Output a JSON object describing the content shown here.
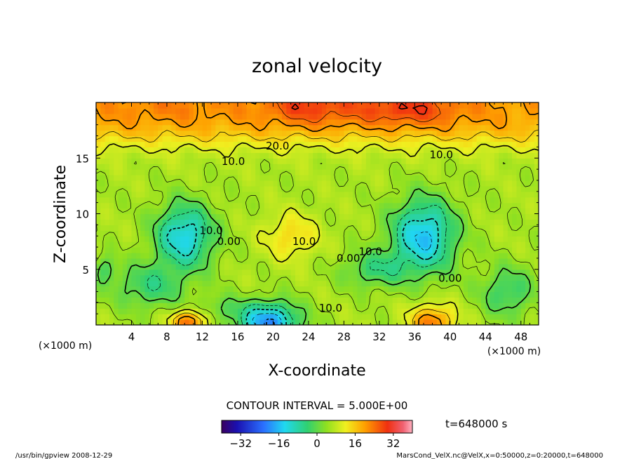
{
  "chart_data": {
    "type": "heatmap",
    "title": "zonal velocity",
    "xlabel": "X-coordinate",
    "ylabel": "Z-coordinate",
    "x_unit": "(×1000 m)",
    "y_unit": "(×1000 m)",
    "xlim": [
      0,
      50
    ],
    "ylim": [
      0,
      20
    ],
    "x_ticks": [
      4,
      8,
      12,
      16,
      20,
      24,
      28,
      32,
      36,
      40,
      44,
      48
    ],
    "y_ticks": [
      5,
      10,
      15
    ],
    "contour_interval_text": "CONTOUR INTERVAL = 5.000E+00",
    "time_label": "t=648000 s",
    "contour_labels": [
      {
        "text": "20.0",
        "x": 20.5,
        "z": 16.1
      },
      {
        "text": "10.0",
        "x": 15.5,
        "z": 14.7
      },
      {
        "text": "10.0",
        "x": 39.0,
        "z": 15.3
      },
      {
        "text": "10.0",
        "x": 13.0,
        "z": 8.5
      },
      {
        "text": "0.00",
        "x": 15.0,
        "z": 7.5
      },
      {
        "text": "10.0",
        "x": 23.5,
        "z": 7.5
      },
      {
        "text": "0.00",
        "x": 28.5,
        "z": 6.0
      },
      {
        "text": "10.0",
        "x": 31.0,
        "z": 6.6
      },
      {
        "text": "0.00",
        "x": 40.0,
        "z": 4.2
      },
      {
        "text": "10.0",
        "x": 26.5,
        "z": 1.5
      }
    ],
    "colorbar": {
      "range": [
        -40,
        40
      ],
      "tick_values": [
        -32,
        -16,
        0,
        16,
        32
      ],
      "tick_labels": [
        "−32",
        "−16",
        "0",
        "16",
        "32"
      ]
    }
  },
  "footer": {
    "left": "/usr/bin/gpview   2008-12-29",
    "right": "MarsCond_VelX.nc@VelX,x=0:50000,z=0:20000,t=648000"
  }
}
